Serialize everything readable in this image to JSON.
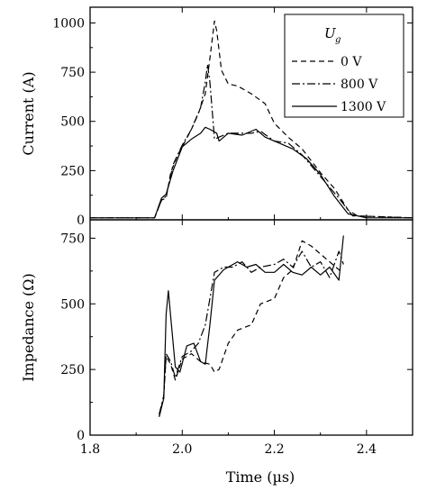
{
  "chart_data": [
    {
      "type": "line",
      "panel": "top",
      "xlabel": "",
      "ylabel": "Current (A)",
      "xlim": [
        1.8,
        2.5
      ],
      "ylim": [
        0,
        1080
      ],
      "yticks": [
        0,
        250,
        500,
        750,
        1000
      ],
      "grid": false,
      "legend": {
        "title": "U",
        "title_sub": "g",
        "position": "top-right"
      },
      "series": [
        {
          "name": "0 V",
          "style": "dashed",
          "points": [
            [
              1.8,
              10
            ],
            [
              1.94,
              10
            ],
            [
              1.955,
              100
            ],
            [
              1.965,
              110
            ],
            [
              1.975,
              240
            ],
            [
              1.99,
              330
            ],
            [
              2.0,
              370
            ],
            [
              2.02,
              460
            ],
            [
              2.035,
              540
            ],
            [
              2.05,
              640
            ],
            [
              2.06,
              820
            ],
            [
              2.07,
              1010
            ],
            [
              2.075,
              960
            ],
            [
              2.085,
              760
            ],
            [
              2.1,
              690
            ],
            [
              2.12,
              680
            ],
            [
              2.15,
              640
            ],
            [
              2.18,
              590
            ],
            [
              2.2,
              490
            ],
            [
              2.23,
              420
            ],
            [
              2.26,
              360
            ],
            [
              2.3,
              240
            ],
            [
              2.33,
              160
            ],
            [
              2.36,
              50
            ],
            [
              2.38,
              20
            ],
            [
              2.5,
              10
            ]
          ]
        },
        {
          "name": "800 V",
          "style": "dashdot",
          "points": [
            [
              1.8,
              10
            ],
            [
              1.94,
              10
            ],
            [
              1.955,
              100
            ],
            [
              1.965,
              120
            ],
            [
              1.98,
              280
            ],
            [
              2.0,
              380
            ],
            [
              2.02,
              460
            ],
            [
              2.04,
              570
            ],
            [
              2.05,
              700
            ],
            [
              2.055,
              790
            ],
            [
              2.06,
              700
            ],
            [
              2.07,
              410
            ],
            [
              2.08,
              420
            ],
            [
              2.1,
              440
            ],
            [
              2.13,
              440
            ],
            [
              2.15,
              440
            ],
            [
              2.17,
              450
            ],
            [
              2.2,
              400
            ],
            [
              2.23,
              390
            ],
            [
              2.26,
              330
            ],
            [
              2.3,
              220
            ],
            [
              2.34,
              110
            ],
            [
              2.37,
              20
            ],
            [
              2.5,
              10
            ]
          ]
        },
        {
          "name": "1300 V",
          "style": "solid",
          "points": [
            [
              1.8,
              10
            ],
            [
              1.94,
              10
            ],
            [
              1.955,
              110
            ],
            [
              1.965,
              130
            ],
            [
              1.98,
              250
            ],
            [
              2.0,
              370
            ],
            [
              2.02,
              410
            ],
            [
              2.04,
              440
            ],
            [
              2.05,
              470
            ],
            [
              2.06,
              460
            ],
            [
              2.075,
              440
            ],
            [
              2.08,
              400
            ],
            [
              2.1,
              440
            ],
            [
              2.13,
              430
            ],
            [
              2.16,
              460
            ],
            [
              2.18,
              420
            ],
            [
              2.2,
              400
            ],
            [
              2.24,
              360
            ],
            [
              2.27,
              310
            ],
            [
              2.3,
              230
            ],
            [
              2.33,
              120
            ],
            [
              2.36,
              30
            ],
            [
              2.4,
              10
            ],
            [
              2.5,
              10
            ]
          ]
        }
      ]
    },
    {
      "type": "line",
      "panel": "bottom",
      "xlabel": "Time (µs)",
      "ylabel": "Impedance (Ω)",
      "xlim": [
        1.8,
        2.5
      ],
      "ylim": [
        0,
        820
      ],
      "xticks": [
        1.8,
        2.0,
        2.2,
        2.4
      ],
      "yticks": [
        0,
        250,
        500,
        750
      ],
      "grid": false,
      "series": [
        {
          "name": "0 V",
          "style": "dashed",
          "points": [
            [
              1.95,
              70
            ],
            [
              1.96,
              150
            ],
            [
              1.965,
              300
            ],
            [
              1.975,
              270
            ],
            [
              1.985,
              210
            ],
            [
              2.0,
              290
            ],
            [
              2.02,
              310
            ],
            [
              2.04,
              280
            ],
            [
              2.06,
              270
            ],
            [
              2.07,
              240
            ],
            [
              2.08,
              250
            ],
            [
              2.1,
              350
            ],
            [
              2.12,
              400
            ],
            [
              2.15,
              420
            ],
            [
              2.17,
              500
            ],
            [
              2.2,
              520
            ],
            [
              2.22,
              600
            ],
            [
              2.24,
              630
            ],
            [
              2.26,
              740
            ],
            [
              2.28,
              720
            ],
            [
              2.3,
              690
            ],
            [
              2.32,
              660
            ],
            [
              2.34,
              630
            ],
            [
              2.35,
              620
            ]
          ]
        },
        {
          "name": "800 V",
          "style": "dashdot",
          "points": [
            [
              1.95,
              80
            ],
            [
              1.96,
              150
            ],
            [
              1.965,
              310
            ],
            [
              1.975,
              280
            ],
            [
              1.985,
              220
            ],
            [
              2.0,
              300
            ],
            [
              2.02,
              320
            ],
            [
              2.035,
              350
            ],
            [
              2.05,
              420
            ],
            [
              2.06,
              520
            ],
            [
              2.07,
              620
            ],
            [
              2.09,
              640
            ],
            [
              2.11,
              640
            ],
            [
              2.13,
              660
            ],
            [
              2.15,
              620
            ],
            [
              2.17,
              640
            ],
            [
              2.2,
              650
            ],
            [
              2.22,
              670
            ],
            [
              2.24,
              640
            ],
            [
              2.26,
              700
            ],
            [
              2.28,
              640
            ],
            [
              2.3,
              660
            ],
            [
              2.32,
              600
            ],
            [
              2.34,
              700
            ],
            [
              2.35,
              650
            ]
          ]
        },
        {
          "name": "1300 V",
          "style": "solid",
          "points": [
            [
              1.95,
              70
            ],
            [
              1.96,
              140
            ],
            [
              1.965,
              460
            ],
            [
              1.97,
              550
            ],
            [
              1.975,
              450
            ],
            [
              1.985,
              260
            ],
            [
              1.995,
              240
            ],
            [
              2.01,
              340
            ],
            [
              2.025,
              350
            ],
            [
              2.04,
              280
            ],
            [
              2.05,
              270
            ],
            [
              2.06,
              420
            ],
            [
              2.07,
              590
            ],
            [
              2.09,
              630
            ],
            [
              2.12,
              660
            ],
            [
              2.14,
              640
            ],
            [
              2.16,
              650
            ],
            [
              2.18,
              620
            ],
            [
              2.2,
              620
            ],
            [
              2.22,
              650
            ],
            [
              2.24,
              620
            ],
            [
              2.26,
              610
            ],
            [
              2.28,
              640
            ],
            [
              2.3,
              610
            ],
            [
              2.32,
              640
            ],
            [
              2.34,
              590
            ],
            [
              2.35,
              760
            ]
          ]
        }
      ]
    }
  ]
}
